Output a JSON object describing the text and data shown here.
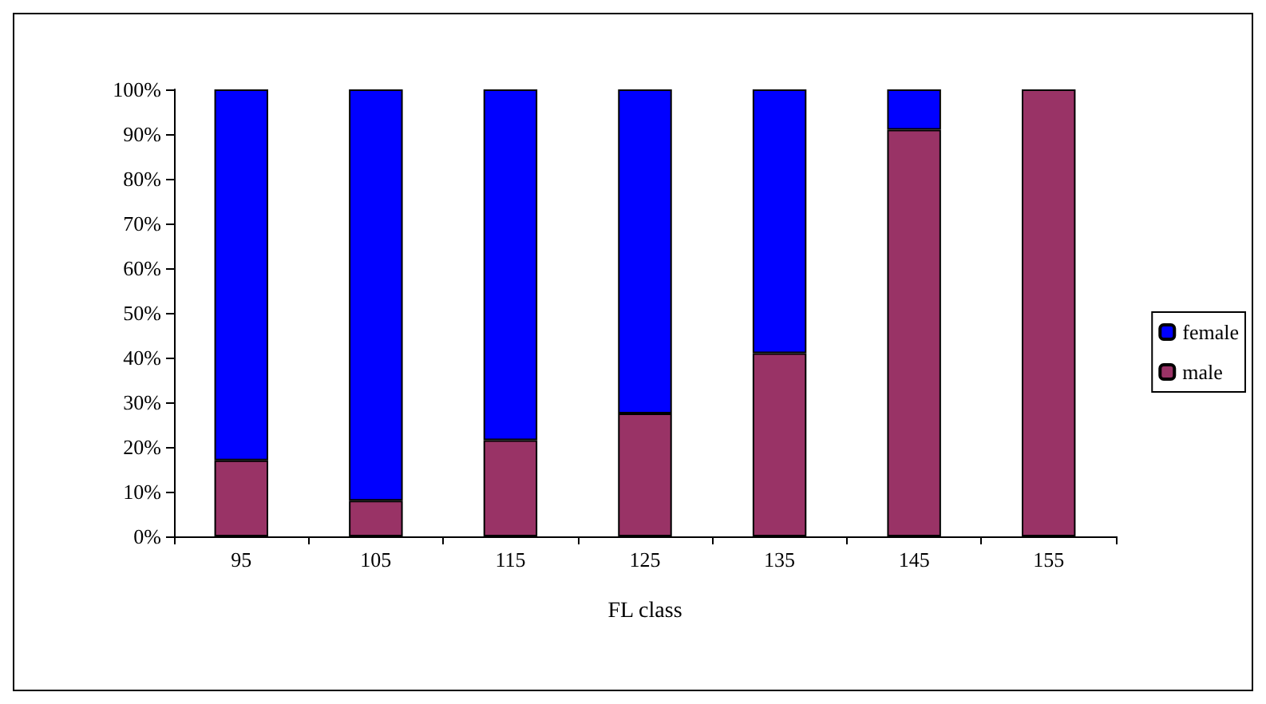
{
  "chart_data": {
    "type": "bar",
    "stacked": true,
    "xlabel": "FL class",
    "categories": [
      "95",
      "105",
      "115",
      "125",
      "135",
      "145",
      "155"
    ],
    "series": [
      {
        "name": "male",
        "color": "#993366",
        "values": [
          17,
          8,
          21.5,
          27.5,
          41,
          91,
          100
        ]
      },
      {
        "name": "female",
        "color": "#0000ff",
        "values": [
          83,
          92,
          78.5,
          72.5,
          59,
          9,
          0
        ]
      }
    ],
    "ylim": [
      0,
      100
    ],
    "yticks": [
      {
        "value": 0,
        "label": "0%"
      },
      {
        "value": 10,
        "label": "10%"
      },
      {
        "value": 20,
        "label": "20%"
      },
      {
        "value": 30,
        "label": "30%"
      },
      {
        "value": 40,
        "label": "40%"
      },
      {
        "value": 50,
        "label": "50%"
      },
      {
        "value": 60,
        "label": "60%"
      },
      {
        "value": 70,
        "label": "70%"
      },
      {
        "value": 80,
        "label": "80%"
      },
      {
        "value": 90,
        "label": "90%"
      },
      {
        "value": 100,
        "label": "100%"
      }
    ],
    "grid": false,
    "legend": "right"
  }
}
